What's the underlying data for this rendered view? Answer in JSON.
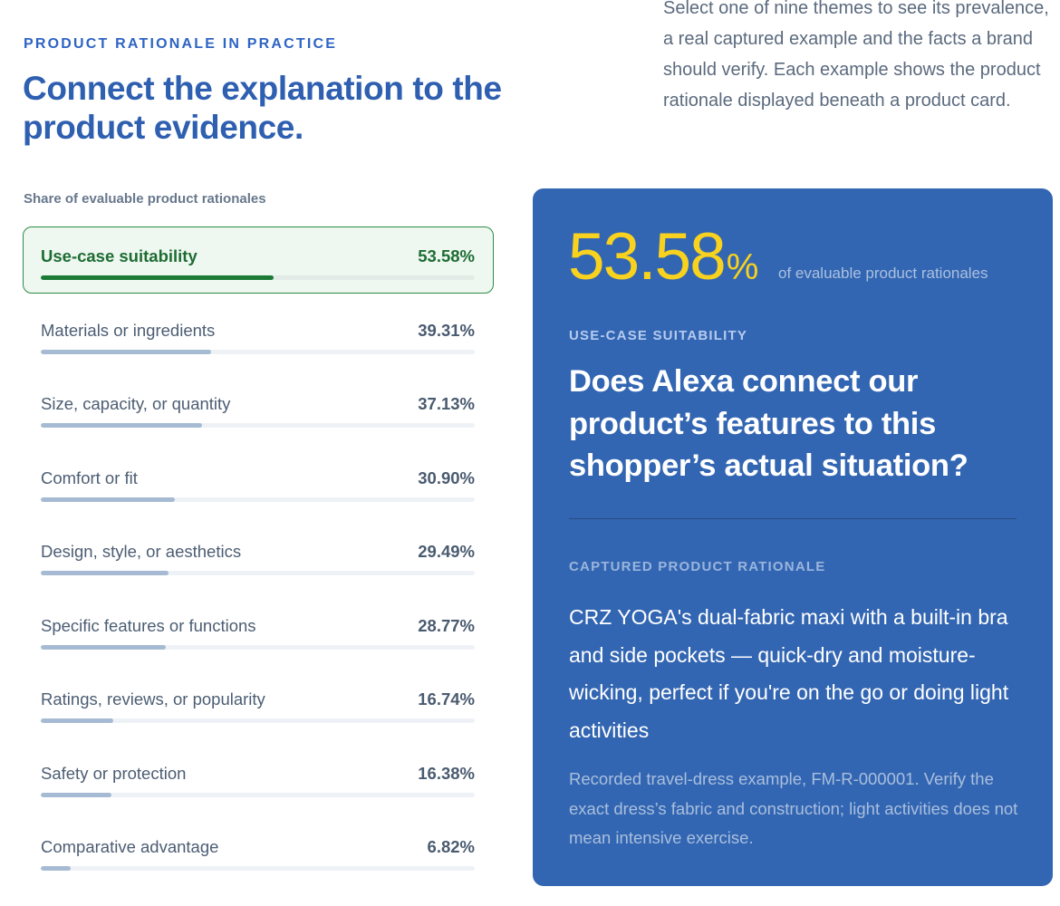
{
  "header": {
    "eyebrow": "PRODUCT RATIONALE IN PRACTICE",
    "headline": "Connect the explanation to the product evidence.",
    "intro": "Select one of nine themes to see its prevalence, a real captured example and the facts a brand should verify. Each example shows the product rationale displayed beneath a product card."
  },
  "themes": {
    "title": "Share of evaluable product rationales",
    "items": [
      {
        "label": "Use-case suitability",
        "pct_text": "53.58%",
        "value": 53.58,
        "selected": true
      },
      {
        "label": "Materials or ingredients",
        "pct_text": "39.31%",
        "value": 39.31,
        "selected": false
      },
      {
        "label": "Size, capacity, or quantity",
        "pct_text": "37.13%",
        "value": 37.13,
        "selected": false
      },
      {
        "label": "Comfort or fit",
        "pct_text": "30.90%",
        "value": 30.9,
        "selected": false
      },
      {
        "label": "Design, style, or aesthetics",
        "pct_text": "29.49%",
        "value": 29.49,
        "selected": false
      },
      {
        "label": "Specific features or functions",
        "pct_text": "28.77%",
        "value": 28.77,
        "selected": false
      },
      {
        "label": "Ratings, reviews, or popularity",
        "pct_text": "16.74%",
        "value": 16.74,
        "selected": false
      },
      {
        "label": "Safety or protection",
        "pct_text": "16.38%",
        "value": 16.38,
        "selected": false
      },
      {
        "label": "Comparative advantage",
        "pct_text": "6.82%",
        "value": 6.82,
        "selected": false
      }
    ]
  },
  "detail": {
    "big_value": "53.58",
    "big_unit": "%",
    "big_caption": "of evaluable product rationales",
    "theme_label": "USE-CASE SUITABILITY",
    "question": "Does Alexa connect our product’s features to this shopper’s actual situation?",
    "captured_label": "CAPTURED PRODUCT RATIONALE",
    "quote": "CRZ YOGA's dual-fabric maxi with a built-in bra and side pockets — quick-dry and moisture-wicking, perfect if you're on the go or doing light activities",
    "note": "Recorded travel-dress example, FM-R-000001. Verify the exact dress’s fabric and construction; light activities does not mean intensive exercise."
  },
  "colors": {
    "accent_blue": "#2e64c4",
    "panel_bg": "#3366b2",
    "highlight_yellow": "#f8d21e",
    "selected_green": "#1d7a35",
    "bar_fill": "#a6bbd3"
  }
}
